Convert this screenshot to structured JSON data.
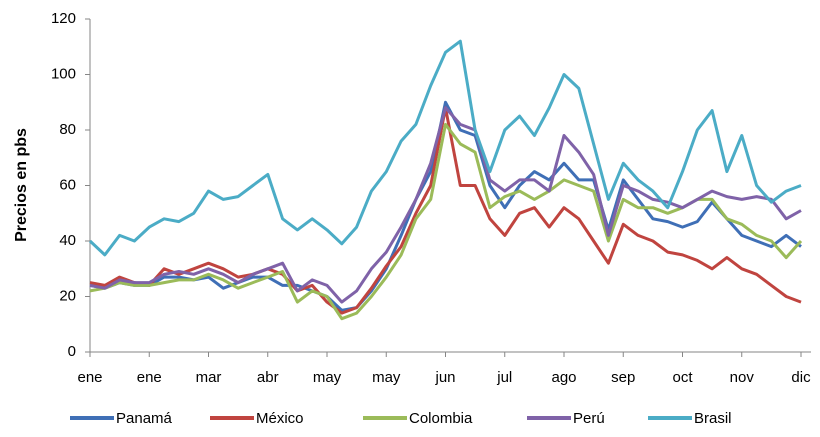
{
  "chart_data": {
    "type": "line",
    "y_label": "Precios en pbs",
    "categories": [
      "ene",
      null,
      null,
      null,
      "ene",
      null,
      null,
      null,
      "mar",
      null,
      null,
      null,
      "abr",
      null,
      null,
      null,
      "may",
      null,
      null,
      null,
      "may",
      null,
      null,
      null,
      "jun",
      null,
      null,
      null,
      "jul",
      null,
      null,
      null,
      "ago",
      null,
      null,
      null,
      "sep",
      null,
      null,
      null,
      "oct",
      null,
      null,
      null,
      "nov",
      null,
      null,
      null,
      "dic"
    ],
    "series": [
      {
        "name": "Panamá",
        "color": "#3f6fb6",
        "values": [
          24,
          23,
          25,
          24,
          24,
          27,
          27,
          26,
          27,
          23,
          25,
          27,
          27,
          24,
          24,
          22,
          20,
          15,
          16,
          22,
          30,
          42,
          55,
          65,
          90,
          80,
          78,
          60,
          52,
          60,
          65,
          62,
          68,
          62,
          62,
          44,
          62,
          55,
          48,
          47,
          45,
          47,
          54,
          48,
          42,
          40,
          38,
          42,
          38
        ]
      },
      {
        "name": "México",
        "color": "#c0443f",
        "values": [
          25,
          24,
          27,
          25,
          24,
          30,
          28,
          30,
          32,
          30,
          27,
          28,
          30,
          28,
          22,
          24,
          18,
          14,
          16,
          23,
          31,
          38,
          50,
          60,
          88,
          60,
          60,
          48,
          42,
          50,
          52,
          45,
          52,
          48,
          40,
          32,
          46,
          42,
          40,
          36,
          35,
          33,
          30,
          34,
          30,
          28,
          24,
          20,
          18
        ]
      },
      {
        "name": "Colombia",
        "color": "#9bbb59",
        "values": [
          22,
          23,
          25,
          24,
          24,
          25,
          26,
          26,
          28,
          26,
          23,
          25,
          27,
          29,
          18,
          22,
          20,
          12,
          14,
          20,
          27,
          35,
          48,
          55,
          82,
          75,
          72,
          52,
          56,
          58,
          55,
          58,
          62,
          60,
          58,
          40,
          55,
          52,
          52,
          50,
          52,
          55,
          55,
          48,
          46,
          42,
          40,
          34,
          40
        ]
      },
      {
        "name": "Perú",
        "color": "#7f62a8",
        "values": [
          24,
          23,
          26,
          25,
          25,
          28,
          29,
          28,
          30,
          28,
          25,
          28,
          30,
          32,
          22,
          26,
          24,
          18,
          22,
          30,
          36,
          45,
          55,
          68,
          88,
          82,
          80,
          62,
          58,
          62,
          62,
          58,
          78,
          72,
          64,
          42,
          60,
          58,
          55,
          54,
          52,
          55,
          58,
          56,
          55,
          56,
          55,
          48,
          51
        ]
      },
      {
        "name": "Brasil",
        "color": "#4bacc6",
        "values": [
          40,
          35,
          42,
          40,
          45,
          48,
          47,
          50,
          58,
          55,
          56,
          60,
          64,
          48,
          44,
          48,
          44,
          39,
          45,
          58,
          65,
          76,
          82,
          96,
          108,
          112,
          80,
          65,
          80,
          85,
          78,
          88,
          100,
          95,
          75,
          55,
          68,
          62,
          58,
          52,
          65,
          80,
          87,
          65,
          78,
          60,
          54,
          58,
          60
        ]
      }
    ],
    "ylim": [
      0,
      120
    ],
    "yticks": [
      0,
      20,
      40,
      60,
      80,
      100,
      120
    ],
    "grid": false,
    "legend": "bottom"
  }
}
